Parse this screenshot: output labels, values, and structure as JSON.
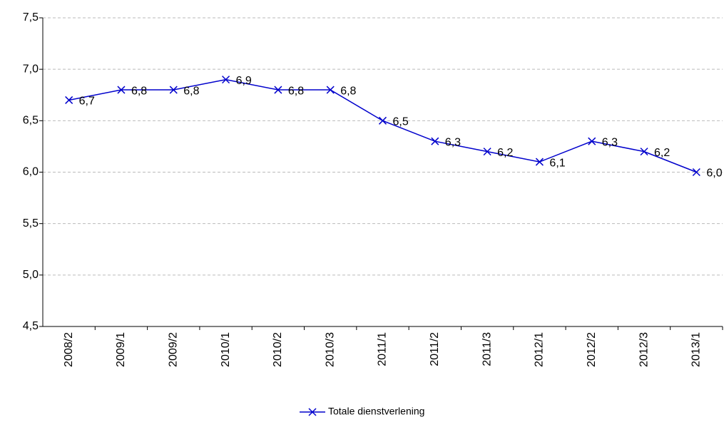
{
  "chart_data": {
    "type": "line",
    "categories": [
      "2008/2",
      "2009/1",
      "2009/2",
      "2010/1",
      "2010/2",
      "2010/3",
      "2011/1",
      "2011/2",
      "2011/3",
      "2012/1",
      "2012/2",
      "2012/3",
      "2013/1"
    ],
    "series": [
      {
        "name": "Totale dienstverlening",
        "color": "#0000cc",
        "values": [
          6.7,
          6.8,
          6.8,
          6.9,
          6.8,
          6.8,
          6.5,
          6.3,
          6.2,
          6.1,
          6.3,
          6.2,
          6.0
        ],
        "value_labels": [
          "6,7",
          "6,8",
          "6,8",
          "6,9",
          "6,8",
          "6,8",
          "6,5",
          "6,3",
          "6,2",
          "6,1",
          "6,3",
          "6,2",
          "6,0"
        ]
      }
    ],
    "ylim": [
      4.5,
      7.5
    ],
    "yticks": [
      {
        "value": 4.5,
        "label": "4,5"
      },
      {
        "value": 5.0,
        "label": "5,0"
      },
      {
        "value": 5.5,
        "label": "5,5"
      },
      {
        "value": 6.0,
        "label": "6,0"
      },
      {
        "value": 6.5,
        "label": "6,5"
      },
      {
        "value": 7.0,
        "label": "7,0"
      },
      {
        "value": 7.5,
        "label": "7,5"
      }
    ],
    "grid": true,
    "legend": "bottom"
  }
}
